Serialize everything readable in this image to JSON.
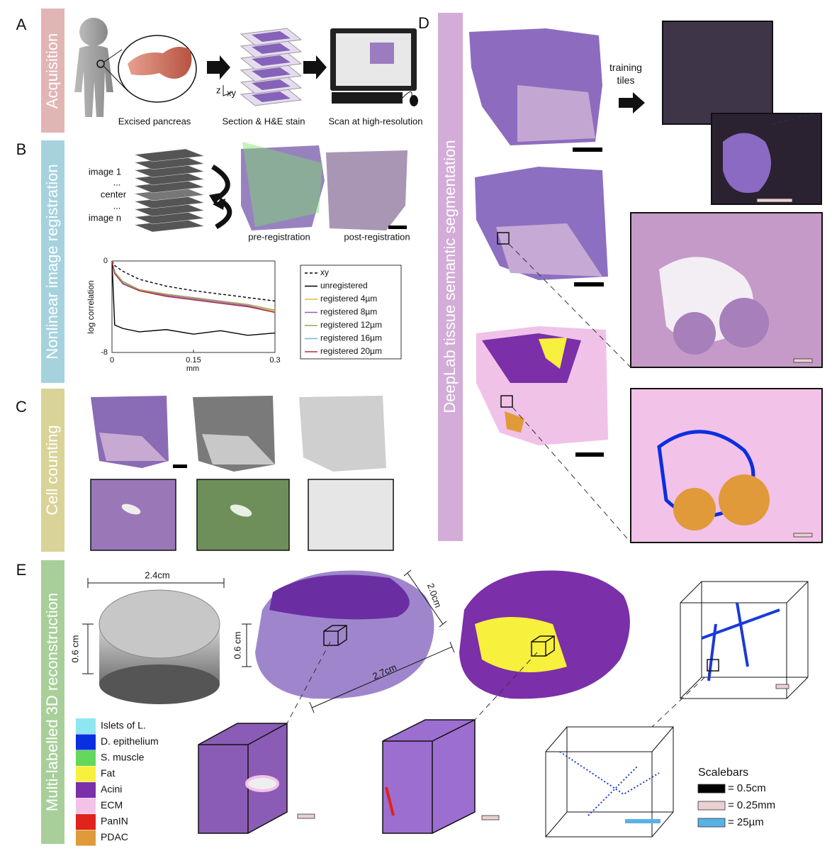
{
  "panel_labels": [
    "A",
    "B",
    "C",
    "D",
    "E"
  ],
  "side_labels": [
    "Acquisition",
    "Nonlinear image registration",
    "Cell counting",
    "DeepLab tissue semantic segmentation",
    "Multi-labelled 3D reconstruction"
  ],
  "panel_a": {
    "captions": [
      "Excised pancreas",
      "Section & H&E stain",
      "Scan at high-resolution"
    ],
    "axis_z": "z",
    "axis_xy": "xy"
  },
  "panel_b": {
    "stack_labels": [
      "image 1",
      "...",
      "center",
      "...",
      "image n"
    ],
    "captions": [
      "pre-registration",
      "post-registration"
    ],
    "chart": {
      "type": "line",
      "ylabel": "log correlation",
      "xlabel": "mm",
      "x": [
        0,
        0.005,
        0.02,
        0.05,
        0.1,
        0.15,
        0.2,
        0.25,
        0.3
      ],
      "xlim": [
        0,
        0.3
      ],
      "ylim": [
        -8,
        0
      ],
      "xticks": [
        0,
        0.15,
        0.3
      ],
      "yticks": [
        0,
        -8
      ],
      "series": [
        {
          "name": "xy",
          "color": "#000000",
          "dash": true,
          "values": [
            0,
            -0.4,
            -0.9,
            -1.6,
            -2.2,
            -2.6,
            -2.9,
            -3.2,
            -3.5
          ]
        },
        {
          "name": "unregistered",
          "color": "#000000",
          "dash": false,
          "values": [
            0,
            -5.6,
            -5.9,
            -6.2,
            -6.0,
            -6.4,
            -6.1,
            -6.5,
            -6.3
          ]
        },
        {
          "name": "registered 4µm",
          "color": "#e3b94b",
          "dash": false,
          "values": [
            0,
            -1.0,
            -1.8,
            -2.5,
            -3.0,
            -3.3,
            -3.6,
            -3.9,
            -4.4
          ]
        },
        {
          "name": "registered 8µm",
          "color": "#9460bd",
          "dash": false,
          "values": [
            0,
            -1.1,
            -1.9,
            -2.6,
            -3.0,
            -3.3,
            -3.6,
            -3.9,
            -4.5
          ]
        },
        {
          "name": "registered 12µm",
          "color": "#a3a14c",
          "dash": false,
          "values": [
            0,
            -1.0,
            -1.8,
            -2.5,
            -2.9,
            -3.2,
            -3.5,
            -3.8,
            -4.3
          ]
        },
        {
          "name": "registered 16µm",
          "color": "#72b3e3",
          "dash": false,
          "values": [
            0,
            -1.1,
            -1.9,
            -2.6,
            -3.1,
            -3.4,
            -3.7,
            -4.0,
            -4.5
          ]
        },
        {
          "name": "registered 20µm",
          "color": "#b3303d",
          "dash": false,
          "values": [
            0,
            -1.1,
            -2.0,
            -2.6,
            -3.1,
            -3.4,
            -3.7,
            -4.0,
            -4.5
          ]
        }
      ]
    }
  },
  "panel_d": {
    "arrow_label": "training tiles"
  },
  "panel_e": {
    "dimensions": [
      "2.4cm",
      "0.6 cm",
      "0.6 cm",
      "2.0cm",
      "2.7cm"
    ],
    "legend": [
      {
        "label": "Islets of L.",
        "color": "#8fe6f0"
      },
      {
        "label": "D. epithelium",
        "color": "#0a2fe0"
      },
      {
        "label": "S. muscle",
        "color": "#63d85c"
      },
      {
        "label": "Fat",
        "color": "#f7f03c"
      },
      {
        "label": "Acini",
        "color": "#7b2fa8"
      },
      {
        "label": "ECM",
        "color": "#f3c2e8"
      },
      {
        "label": "PanIN",
        "color": "#e0231b"
      },
      {
        "label": "PDAC",
        "color": "#e09a3a"
      }
    ],
    "scalebars": {
      "title": "Scalebars",
      "items": [
        {
          "label": "= 0.5cm",
          "color": "#000000"
        },
        {
          "label": "= 0.25mm",
          "color": "#ead0d0"
        },
        {
          "label": "= 25µm",
          "color": "#58b2e6"
        }
      ]
    }
  }
}
